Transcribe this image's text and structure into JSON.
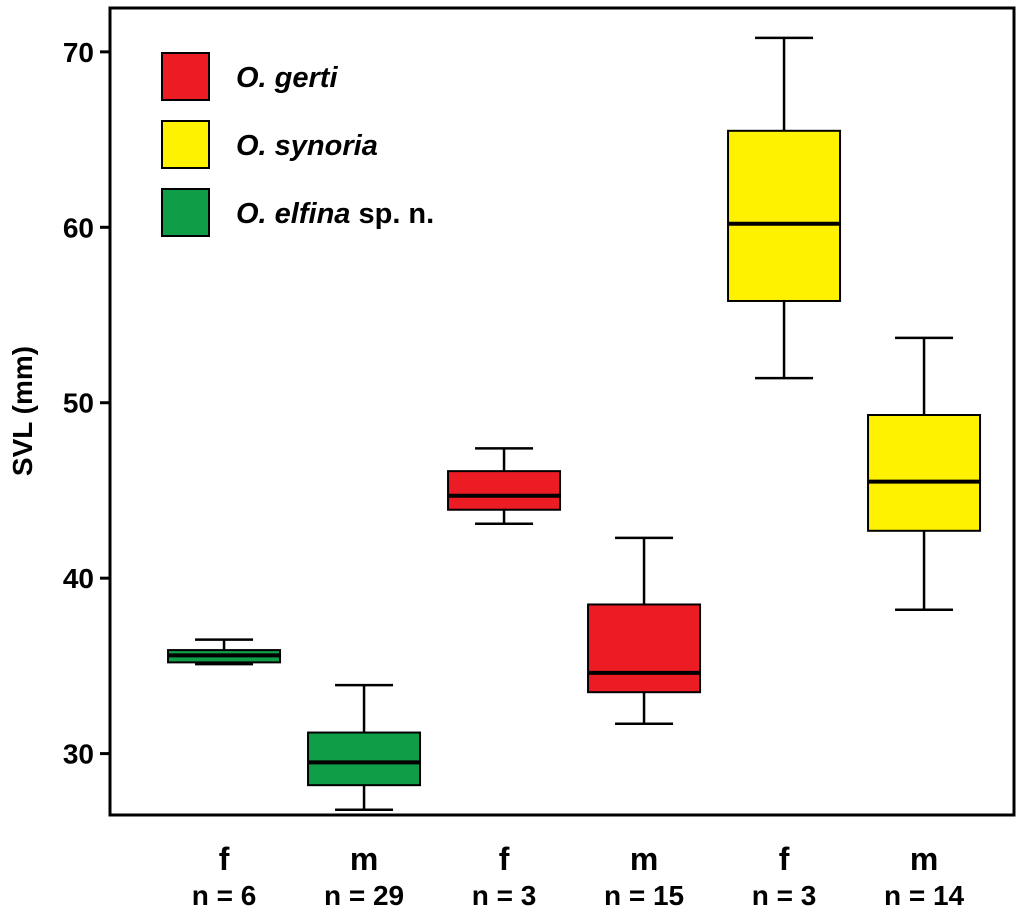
{
  "chart_data": {
    "type": "box",
    "title": "",
    "ylabel": "SVL (mm)",
    "xlabel": "",
    "ylim": [
      26.5,
      72.5
    ],
    "yticks": [
      30,
      40,
      50,
      60,
      70
    ],
    "grid": false,
    "legend_position": "top-left",
    "legend": [
      {
        "species": "O. gerti",
        "suffix": "",
        "color": "#ec1c24"
      },
      {
        "species": "O. synoria",
        "suffix": "",
        "color": "#fff200"
      },
      {
        "species": "O. elfina",
        "suffix": " sp. n.",
        "color": "#0f9d48"
      }
    ],
    "categories": [
      {
        "sex": "f",
        "n_label": "n = 6",
        "color": "#0f9d48",
        "whisker_low": 35.1,
        "q1": 35.2,
        "median": 35.6,
        "q3": 35.9,
        "whisker_high": 36.5
      },
      {
        "sex": "m",
        "n_label": "n = 29",
        "color": "#0f9d48",
        "whisker_low": 26.8,
        "q1": 28.2,
        "median": 29.5,
        "q3": 31.2,
        "whisker_high": 33.9
      },
      {
        "sex": "f",
        "n_label": "n = 3",
        "color": "#ec1c24",
        "whisker_low": 43.1,
        "q1": 43.9,
        "median": 44.7,
        "q3": 46.1,
        "whisker_high": 47.4
      },
      {
        "sex": "m",
        "n_label": "n = 15",
        "color": "#ec1c24",
        "whisker_low": 31.7,
        "q1": 33.5,
        "median": 34.6,
        "q3": 38.5,
        "whisker_high": 42.3
      },
      {
        "sex": "f",
        "n_label": "n = 3",
        "color": "#fff200",
        "whisker_low": 51.4,
        "q1": 55.8,
        "median": 60.2,
        "q3": 65.5,
        "whisker_high": 70.8
      },
      {
        "sex": "m",
        "n_label": "n = 14",
        "color": "#fff200",
        "whisker_low": 38.2,
        "q1": 42.7,
        "median": 45.5,
        "q3": 49.3,
        "whisker_high": 53.7
      }
    ]
  }
}
